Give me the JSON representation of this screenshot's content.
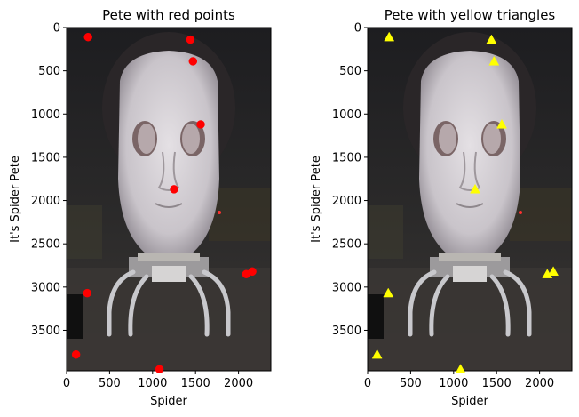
{
  "chart_data": [
    {
      "type": "scatter",
      "title": "Pete with red points",
      "xlabel": "Spider",
      "ylabel": "It's Spider Pete",
      "xlim": [
        0,
        2376
      ],
      "ylim": [
        3968,
        0
      ],
      "y_inverted": true,
      "xticks": [
        0,
        500,
        1000,
        1500,
        2000
      ],
      "yticks": [
        0,
        500,
        1000,
        1500,
        2000,
        2500,
        3000,
        3500
      ],
      "background": "photo",
      "marker": "circle",
      "marker_color": "#ff0000",
      "x": [
        250,
        1440,
        1470,
        1560,
        1250,
        2090,
        2160,
        240,
        110,
        1080
      ],
      "y": [
        110,
        140,
        390,
        1120,
        1870,
        2850,
        2820,
        3070,
        3780,
        3950
      ]
    },
    {
      "type": "scatter",
      "title": "Pete with yellow triangles",
      "xlabel": "Spider",
      "ylabel": "It's Spider Pete",
      "xlim": [
        0,
        2376
      ],
      "ylim": [
        3968,
        0
      ],
      "y_inverted": true,
      "xticks": [
        0,
        500,
        1000,
        1500,
        2000
      ],
      "yticks": [
        0,
        500,
        1000,
        1500,
        2000,
        2500,
        3000,
        3500
      ],
      "background": "photo",
      "marker": "triangle-up",
      "marker_color": "#ffff00",
      "x": [
        250,
        1440,
        1470,
        1560,
        1250,
        2090,
        2160,
        240,
        110,
        1080
      ],
      "y": [
        110,
        140,
        390,
        1120,
        1870,
        2850,
        2820,
        3070,
        3780,
        3950
      ]
    }
  ]
}
